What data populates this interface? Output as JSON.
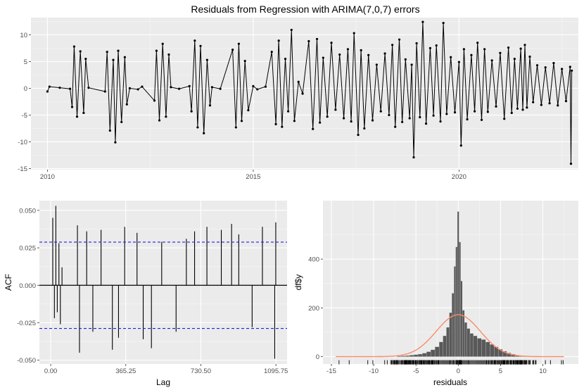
{
  "chart_data": [
    {
      "type": "line",
      "title": "Residuals from Regression with ARIMA(7,0,7) errors",
      "xlabel": "",
      "ylabel": "",
      "x_ticks": [
        "2010",
        "2015",
        "2020"
      ],
      "y_ticks": [
        "10",
        "5",
        "0",
        "-5",
        "-10",
        "-15"
      ],
      "xlim": [
        2009.6,
        2022.9
      ],
      "ylim": [
        -15.2,
        13.2
      ],
      "grid": true,
      "series": [
        {
          "points": [
            [
              2010.0,
              -0.6
            ],
            [
              2010.05,
              0.3
            ],
            [
              2010.3,
              0.1
            ],
            [
              2010.55,
              -0.1
            ],
            [
              2010.6,
              -3.5
            ],
            [
              2010.65,
              7.8
            ],
            [
              2010.72,
              -5.3
            ],
            [
              2010.8,
              6.9
            ],
            [
              2010.88,
              -4.6
            ],
            [
              2010.93,
              5.5
            ],
            [
              2011.0,
              0.1
            ],
            [
              2011.4,
              -0.6
            ],
            [
              2011.45,
              6.8
            ],
            [
              2011.52,
              -7.9
            ],
            [
              2011.6,
              5.3
            ],
            [
              2011.65,
              -10.1
            ],
            [
              2011.72,
              7.0
            ],
            [
              2011.8,
              -6.3
            ],
            [
              2011.88,
              5.8
            ],
            [
              2011.93,
              -3.0
            ],
            [
              2012.0,
              0.0
            ],
            [
              2012.2,
              -0.2
            ],
            [
              2012.3,
              0.3
            ],
            [
              2012.6,
              -2.3
            ],
            [
              2012.65,
              7.0
            ],
            [
              2012.72,
              -6.0
            ],
            [
              2012.8,
              8.3
            ],
            [
              2012.88,
              -5.3
            ],
            [
              2012.95,
              6.3
            ],
            [
              2013.0,
              0.2
            ],
            [
              2013.2,
              -0.1
            ],
            [
              2013.45,
              0.4
            ],
            [
              2013.5,
              -4.3
            ],
            [
              2013.58,
              8.9
            ],
            [
              2013.65,
              -7.3
            ],
            [
              2013.72,
              7.9
            ],
            [
              2013.8,
              -8.4
            ],
            [
              2013.88,
              5.3
            ],
            [
              2013.95,
              -3.2
            ],
            [
              2014.0,
              0.2
            ],
            [
              2014.2,
              -0.1
            ],
            [
              2014.5,
              7.2
            ],
            [
              2014.58,
              -7.3
            ],
            [
              2014.65,
              8.3
            ],
            [
              2014.72,
              -6.1
            ],
            [
              2014.8,
              5.1
            ],
            [
              2014.88,
              -4.1
            ],
            [
              2015.0,
              0.4
            ],
            [
              2015.1,
              -0.2
            ],
            [
              2015.3,
              0.3
            ],
            [
              2015.45,
              6.8
            ],
            [
              2015.55,
              -6.7
            ],
            [
              2015.62,
              8.9
            ],
            [
              2015.7,
              -7.2
            ],
            [
              2015.78,
              5.5
            ],
            [
              2015.85,
              -4.3
            ],
            [
              2015.93,
              10.9
            ],
            [
              2016.0,
              -6.1
            ],
            [
              2016.1,
              1.2
            ],
            [
              2016.2,
              -1.0
            ],
            [
              2016.35,
              8.8
            ],
            [
              2016.45,
              -7.6
            ],
            [
              2016.55,
              9.2
            ],
            [
              2016.62,
              -6.4
            ],
            [
              2016.7,
              5.7
            ],
            [
              2016.8,
              -5.3
            ],
            [
              2016.9,
              8.5
            ],
            [
              2017.0,
              -4.0
            ],
            [
              2017.1,
              6.3
            ],
            [
              2017.2,
              -5.6
            ],
            [
              2017.3,
              7.3
            ],
            [
              2017.38,
              -6.2
            ],
            [
              2017.45,
              10.3
            ],
            [
              2017.55,
              -8.7
            ],
            [
              2017.62,
              7.1
            ],
            [
              2017.7,
              -7.5
            ],
            [
              2017.8,
              6.2
            ],
            [
              2017.9,
              -6.0
            ],
            [
              2018.0,
              4.4
            ],
            [
              2018.1,
              -4.3
            ],
            [
              2018.2,
              6.5
            ],
            [
              2018.3,
              -5.0
            ],
            [
              2018.38,
              8.1
            ],
            [
              2018.45,
              -7.2
            ],
            [
              2018.55,
              9.1
            ],
            [
              2018.62,
              -6.3
            ],
            [
              2018.7,
              5.4
            ],
            [
              2018.8,
              -5.6
            ],
            [
              2018.85,
              4.4
            ],
            [
              2018.9,
              -12.9
            ],
            [
              2018.97,
              8.4
            ],
            [
              2019.05,
              -5.4
            ],
            [
              2019.12,
              12.4
            ],
            [
              2019.2,
              -6.6
            ],
            [
              2019.3,
              7.5
            ],
            [
              2019.38,
              -5.1
            ],
            [
              2019.45,
              8.0
            ],
            [
              2019.55,
              -6.2
            ],
            [
              2019.62,
              12.2
            ],
            [
              2019.7,
              -4.8
            ],
            [
              2019.8,
              5.8
            ],
            [
              2019.9,
              -4.5
            ],
            [
              2020.0,
              4.9
            ],
            [
              2020.05,
              -10.7
            ],
            [
              2020.12,
              7.3
            ],
            [
              2020.2,
              -5.8
            ],
            [
              2020.3,
              6.2
            ],
            [
              2020.38,
              -4.3
            ],
            [
              2020.45,
              8.5
            ],
            [
              2020.55,
              -5.9
            ],
            [
              2020.62,
              7.3
            ],
            [
              2020.7,
              -4.4
            ],
            [
              2020.8,
              5.2
            ],
            [
              2020.9,
              -3.4
            ],
            [
              2021.0,
              6.6
            ],
            [
              2021.1,
              -5.7
            ],
            [
              2021.2,
              7.6
            ],
            [
              2021.28,
              -4.6
            ],
            [
              2021.35,
              5.5
            ],
            [
              2021.42,
              -3.8
            ],
            [
              2021.5,
              7.4
            ],
            [
              2021.55,
              -4.0
            ],
            [
              2021.6,
              8.1
            ],
            [
              2021.65,
              -3.6
            ],
            [
              2021.72,
              5.9
            ],
            [
              2021.8,
              -2.6
            ],
            [
              2021.9,
              4.3
            ],
            [
              2022.0,
              -3.1
            ],
            [
              2022.1,
              3.9
            ],
            [
              2022.2,
              -2.8
            ],
            [
              2022.3,
              4.7
            ],
            [
              2022.4,
              -3.2
            ],
            [
              2022.5,
              3.6
            ],
            [
              2022.6,
              -2.4
            ],
            [
              2022.7,
              4.0
            ],
            [
              2022.72,
              -14.1
            ],
            [
              2022.74,
              3.3
            ]
          ]
        }
      ]
    },
    {
      "type": "bar",
      "title": "",
      "xlabel": "Lag",
      "ylabel": "ACF",
      "x_ticks": [
        "0.00",
        "365.25",
        "730.50",
        "1095.75"
      ],
      "y_ticks": [
        "0.050",
        "0.025",
        "0.000",
        "-0.025",
        "-0.050"
      ],
      "xlim": [
        -55,
        1150
      ],
      "ylim": [
        -0.0525,
        0.0565
      ],
      "grid": true,
      "confidence_bounds": [
        0.0288,
        -0.0288
      ],
      "series": [
        {
          "lags_and_acf": [
            [
              10,
              0.045
            ],
            [
              18,
              -0.022
            ],
            [
              25,
              0.053
            ],
            [
              32,
              -0.018
            ],
            [
              40,
              0.028
            ],
            [
              47,
              -0.026
            ],
            [
              55,
              0.012
            ],
            [
              130,
              0.04
            ],
            [
              140,
              -0.045
            ],
            [
              175,
              0.036
            ],
            [
              205,
              -0.031
            ],
            [
              245,
              0.037
            ],
            [
              300,
              -0.043
            ],
            [
              330,
              -0.035
            ],
            [
              360,
              0.039
            ],
            [
              420,
              0.035
            ],
            [
              450,
              -0.036
            ],
            [
              490,
              -0.042
            ],
            [
              540,
              0.029
            ],
            [
              610,
              -0.031
            ],
            [
              660,
              0.031
            ],
            [
              700,
              0.036
            ],
            [
              760,
              0.039
            ],
            [
              830,
              0.037
            ],
            [
              880,
              0.041
            ],
            [
              915,
              0.034
            ],
            [
              980,
              -0.028
            ],
            [
              1030,
              0.039
            ],
            [
              1090,
              -0.049
            ],
            [
              1095,
              0.042
            ]
          ]
        }
      ]
    },
    {
      "type": "bar",
      "title": "",
      "xlabel": "residuals",
      "ylabel": "df$y",
      "x_ticks": [
        "-15",
        "-10",
        "-5",
        "0",
        "5",
        "10"
      ],
      "y_ticks": [
        "0",
        "200",
        "400"
      ],
      "xlim": [
        -16,
        14.2
      ],
      "ylim": [
        -30,
        640
      ],
      "grid": true,
      "bin_width": 0.28,
      "histogram": {
        "bin_centers": [
          -7.0,
          -6.5,
          -6.0,
          -5.5,
          -5.0,
          -4.5,
          -4.0,
          -3.5,
          -3.0,
          -2.5,
          -2.0,
          -1.6,
          -1.2,
          -0.9,
          -0.6,
          -0.4,
          -0.2,
          0.0,
          0.2,
          0.4,
          0.6,
          0.9,
          1.2,
          1.6,
          2.0,
          2.5,
          3.0,
          3.5,
          4.0,
          4.5,
          5.0,
          5.5,
          6.0,
          6.5,
          7.0,
          7.5,
          8.0,
          9.0,
          10.0
        ],
        "counts": [
          2,
          3,
          4,
          6,
          8,
          10,
          14,
          20,
          28,
          40,
          60,
          85,
          120,
          180,
          260,
          370,
          450,
          595,
          470,
          310,
          190,
          140,
          115,
          95,
          85,
          75,
          70,
          60,
          50,
          40,
          30,
          22,
          15,
          10,
          6,
          4,
          2,
          1,
          1
        ]
      },
      "normal_curve": {
        "mean": 0.0,
        "sd": 2.6,
        "peak": 172,
        "color": "#fa8c6b"
      },
      "bar_color": "#595959"
    }
  ]
}
